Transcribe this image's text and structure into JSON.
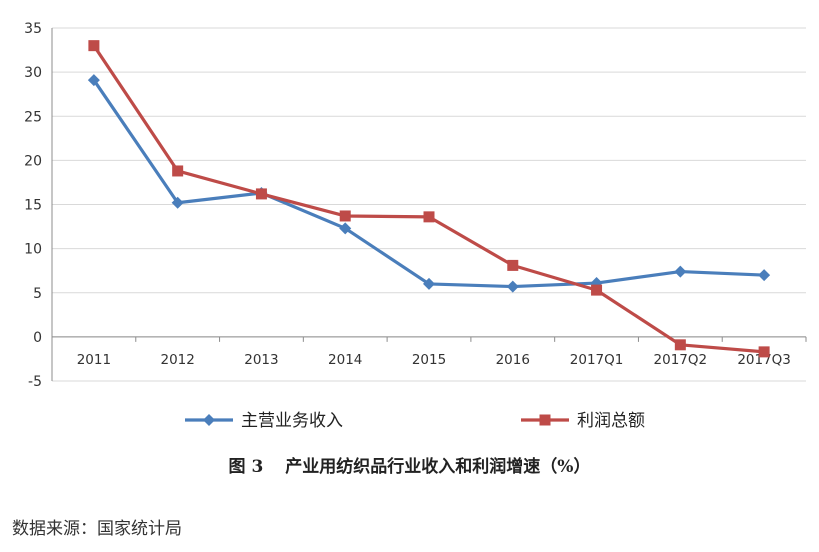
{
  "chart_data": {
    "type": "line",
    "categories": [
      "2011",
      "2012",
      "2013",
      "2014",
      "2015",
      "2016",
      "2017Q1",
      "2017Q2",
      "2017Q3"
    ],
    "series": [
      {
        "name": "主营业务收入",
        "color": "#4a7ebb",
        "marker": "diamond",
        "values": [
          29.1,
          15.2,
          16.3,
          12.3,
          6.0,
          5.7,
          6.1,
          7.4,
          7.0
        ]
      },
      {
        "name": "利润总额",
        "color": "#be4b48",
        "marker": "square",
        "values": [
          33.0,
          18.8,
          16.2,
          13.7,
          13.6,
          8.1,
          5.3,
          -0.9,
          -1.7
        ]
      }
    ],
    "ylim": [
      -5,
      35
    ],
    "yticks": [
      -5,
      0,
      5,
      10,
      15,
      20,
      25,
      30,
      35
    ],
    "grid": true,
    "legend": "bottom"
  },
  "caption": {
    "figure": "图 3",
    "title": "产业用纺织品行业收入和利润增速（%）"
  },
  "source": "数据来源：国家统计局"
}
